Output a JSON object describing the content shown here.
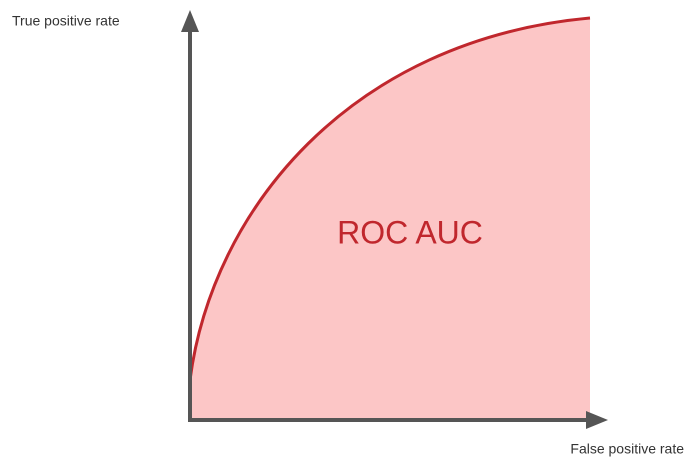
{
  "y_axis_label": "True positive rate",
  "x_axis_label": "False positive rate",
  "area_label": "ROC AUC"
}
